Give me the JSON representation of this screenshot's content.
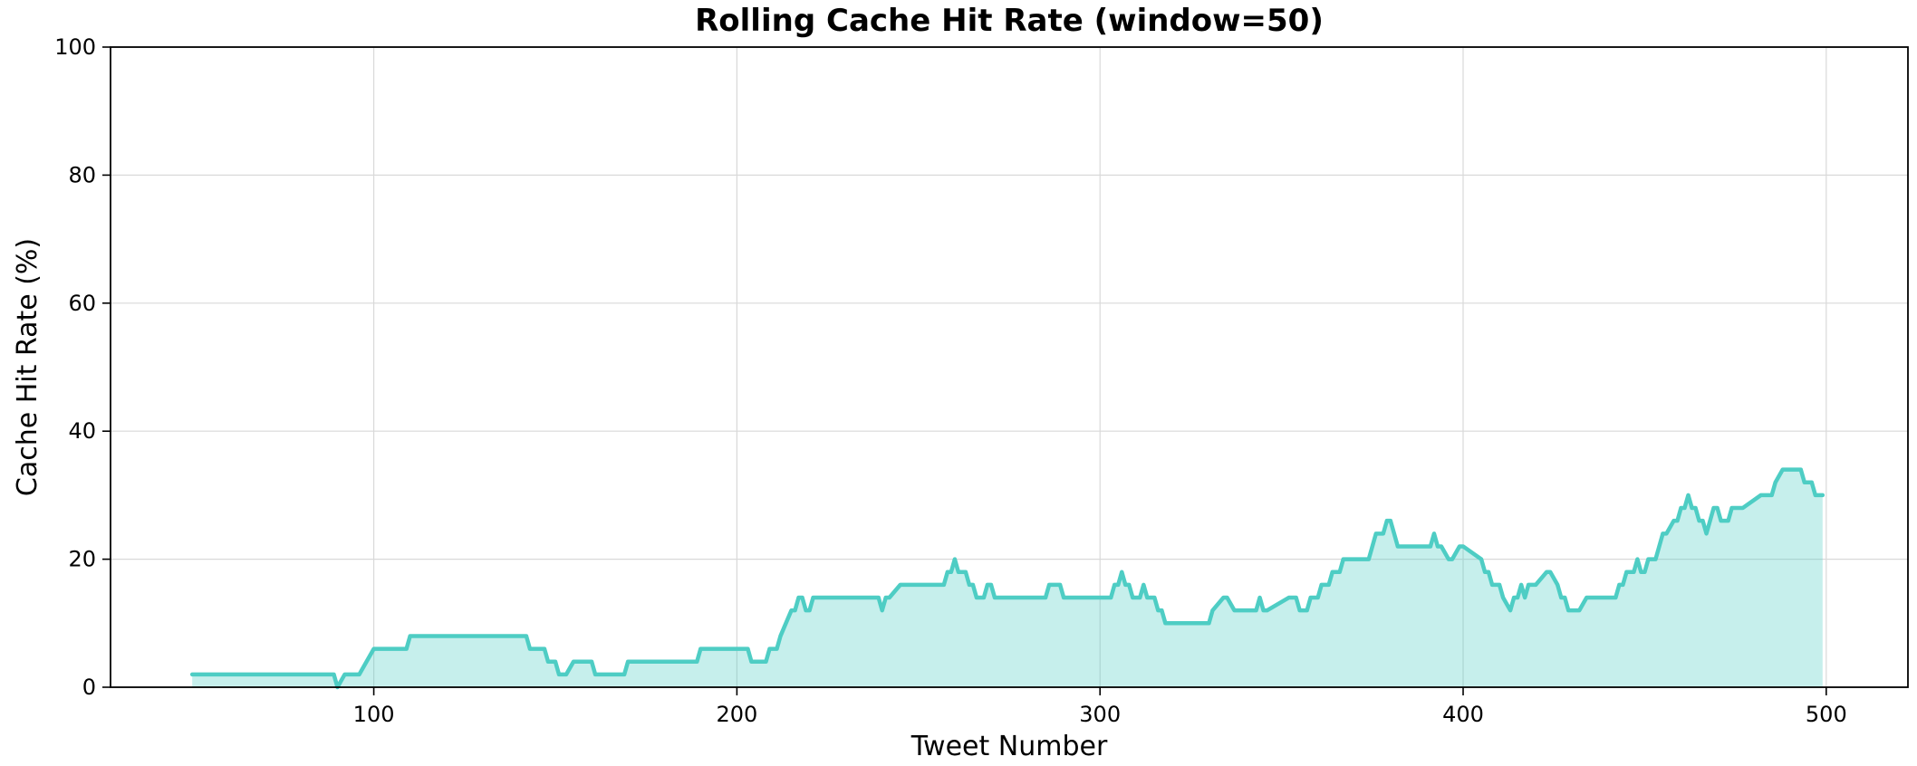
{
  "chart_data": {
    "type": "area",
    "title": "Rolling Cache Hit Rate (window=50)",
    "xlabel": "Tweet Number",
    "ylabel": "Cache Hit Rate (%)",
    "xlim": [
      27.5,
      522.5
    ],
    "ylim": [
      0,
      100
    ],
    "xticks": [
      100,
      200,
      300,
      400,
      500
    ],
    "yticks": [
      0,
      20,
      40,
      60,
      80,
      100
    ],
    "grid": true,
    "legend": "none",
    "colors": {
      "line": "#4ecdc4",
      "fill": "#4ecdc4",
      "fill_opacity": 0.32,
      "grid": "#d9d9d9"
    },
    "series": [
      {
        "x": [
          50,
          89,
          90,
          92,
          96,
          98,
          100,
          109,
          110,
          142,
          143,
          147,
          148,
          150,
          151,
          153,
          155,
          160,
          161,
          169,
          170,
          189,
          190,
          203,
          204,
          208,
          209,
          211,
          212,
          215,
          216,
          217,
          218,
          219,
          220,
          221,
          222,
          239,
          240,
          241,
          242,
          245,
          246,
          257,
          258,
          259,
          260,
          261,
          262,
          263,
          264,
          265,
          266,
          268,
          269,
          270,
          271,
          285,
          286,
          289,
          290,
          303,
          304,
          305,
          306,
          307,
          308,
          309,
          310,
          311,
          312,
          313,
          314,
          315,
          316,
          317,
          318,
          319,
          320,
          330,
          331,
          334,
          335,
          337,
          338,
          343,
          344,
          345,
          346,
          352,
          353,
          354,
          355,
          357,
          358,
          360,
          361,
          363,
          364,
          366,
          367,
          374,
          375,
          376,
          377,
          378,
          379,
          380,
          381,
          382,
          383,
          391,
          392,
          393,
          394,
          396,
          397,
          399,
          400,
          405,
          406,
          407,
          408,
          410,
          411,
          413,
          414,
          415,
          416,
          417,
          418,
          419,
          420,
          423,
          424,
          426,
          427,
          428,
          429,
          431,
          432,
          434,
          435,
          442,
          443,
          444,
          445,
          447,
          448,
          449,
          450,
          451,
          452,
          453,
          454,
          455,
          456,
          458,
          459,
          460,
          461,
          462,
          463,
          464,
          465,
          466,
          467,
          468,
          469,
          470,
          471,
          472,
          473,
          474,
          475,
          476,
          477,
          482,
          483,
          485,
          486,
          488,
          489,
          493,
          494,
          496,
          497,
          499
        ],
        "y": [
          2,
          2,
          0,
          2,
          2,
          4,
          6,
          6,
          8,
          8,
          6,
          6,
          4,
          4,
          2,
          2,
          4,
          4,
          2,
          2,
          4,
          4,
          6,
          6,
          4,
          4,
          6,
          6,
          8,
          12,
          12,
          14,
          14,
          12,
          12,
          14,
          14,
          14,
          12,
          14,
          14,
          16,
          16,
          16,
          18,
          18,
          20,
          18,
          18,
          18,
          16,
          16,
          14,
          14,
          16,
          16,
          14,
          14,
          16,
          16,
          14,
          14,
          16,
          16,
          18,
          16,
          16,
          14,
          14,
          14,
          16,
          14,
          14,
          14,
          12,
          12,
          10,
          10,
          10,
          10,
          12,
          14,
          14,
          12,
          12,
          12,
          14,
          12,
          12,
          14,
          14,
          14,
          12,
          12,
          14,
          14,
          16,
          16,
          18,
          18,
          20,
          20,
          22,
          24,
          24,
          24,
          26,
          26,
          24,
          22,
          22,
          22,
          24,
          22,
          22,
          20,
          20,
          22,
          22,
          20,
          18,
          18,
          16,
          16,
          14,
          12,
          14,
          14,
          16,
          14,
          16,
          16,
          16,
          18,
          18,
          16,
          14,
          14,
          12,
          12,
          12,
          14,
          14,
          14,
          16,
          16,
          18,
          18,
          20,
          18,
          18,
          20,
          20,
          20,
          22,
          24,
          24,
          26,
          26,
          28,
          28,
          30,
          28,
          28,
          26,
          26,
          24,
          26,
          28,
          28,
          26,
          26,
          26,
          28,
          28,
          28,
          28,
          30,
          30,
          30,
          32,
          34,
          34,
          34,
          32,
          32,
          30,
          30
        ]
      }
    ]
  }
}
